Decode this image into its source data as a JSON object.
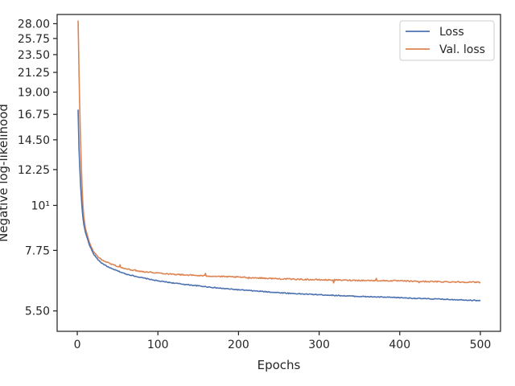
{
  "chart_data": {
    "type": "line",
    "xlabel": "Epochs",
    "ylabel": "Negative log-likelihood",
    "xlim": [
      -25,
      525
    ],
    "ylim": [
      4.9,
      29.5
    ],
    "yscale": "log",
    "xticks": [
      0,
      100,
      200,
      300,
      400,
      500
    ],
    "xtick_labels": [
      "0",
      "100",
      "200",
      "300",
      "400",
      "500"
    ],
    "yticks": [
      5.5,
      7.75,
      10,
      12.25,
      14.5,
      16.75,
      19,
      21.25,
      23.5,
      25.75,
      28
    ],
    "ytick_labels": [
      "5.50",
      "7.75",
      "10¹",
      "12.25",
      "14.50",
      "16.75",
      "19.00",
      "21.25",
      "23.50",
      "25.75",
      "28.00"
    ],
    "grid": false,
    "legend_position": "top-right",
    "series": [
      {
        "name": "Loss",
        "color": "#4c72b0",
        "x": [
          1,
          2,
          3,
          4,
          5,
          6,
          7,
          8,
          10,
          12,
          15,
          20,
          25,
          30,
          40,
          50,
          60,
          80,
          100,
          125,
          150,
          175,
          200,
          225,
          250,
          275,
          300,
          325,
          350,
          375,
          400,
          425,
          450,
          475,
          500
        ],
        "y": [
          17.2,
          14.0,
          12.5,
          11.3,
          10.5,
          9.8,
          9.35,
          9.0,
          8.6,
          8.35,
          8.0,
          7.6,
          7.38,
          7.22,
          7.02,
          6.9,
          6.78,
          6.64,
          6.52,
          6.42,
          6.34,
          6.26,
          6.2,
          6.15,
          6.1,
          6.06,
          6.03,
          6.0,
          5.97,
          5.95,
          5.93,
          5.9,
          5.88,
          5.86,
          5.83
        ]
      },
      {
        "name": "Val. loss",
        "color": "#dd8452",
        "x": [
          1,
          2,
          3,
          4,
          5,
          6,
          7,
          8,
          10,
          12,
          15,
          20,
          25,
          30,
          40,
          50,
          60,
          80,
          100,
          125,
          150,
          175,
          200,
          225,
          250,
          275,
          300,
          325,
          350,
          375,
          400,
          425,
          450,
          475,
          500
        ],
        "y": [
          28.5,
          22.0,
          17.5,
          14.5,
          12.5,
          11.0,
          10.0,
          9.4,
          8.8,
          8.5,
          8.1,
          7.7,
          7.5,
          7.35,
          7.2,
          7.08,
          6.98,
          6.88,
          6.82,
          6.76,
          6.72,
          6.69,
          6.66,
          6.63,
          6.6,
          6.58,
          6.56,
          6.55,
          6.54,
          6.53,
          6.52,
          6.5,
          6.49,
          6.48,
          6.47
        ]
      }
    ]
  }
}
